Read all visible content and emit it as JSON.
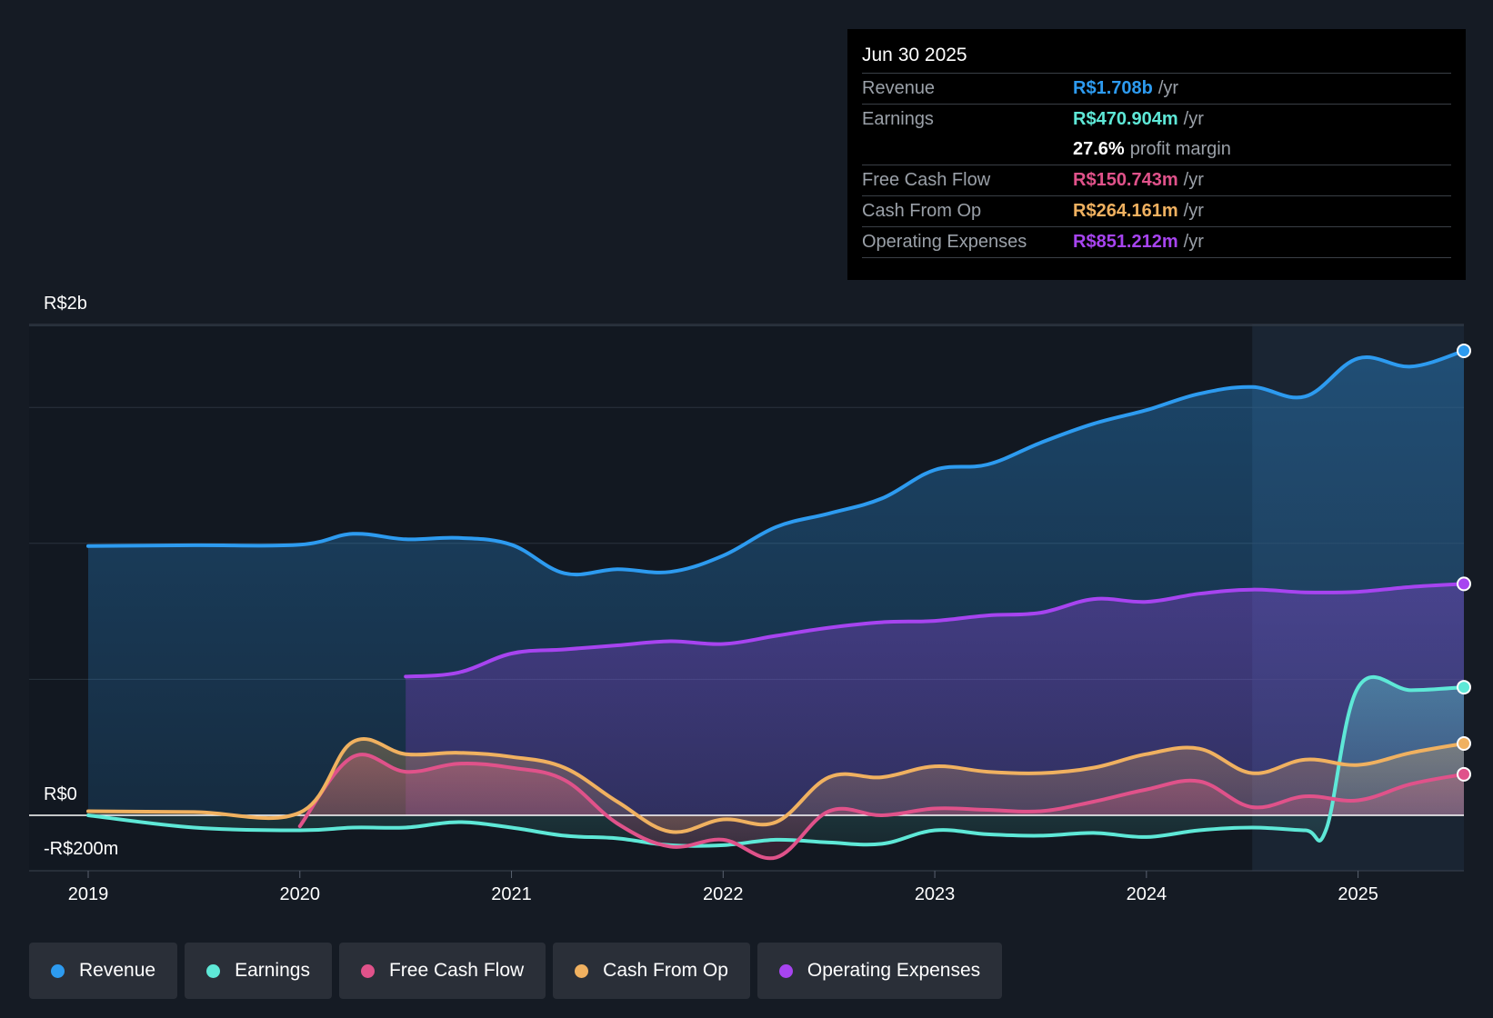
{
  "tooltip": {
    "date": "Jun 30 2025",
    "rows": [
      {
        "label": "Revenue",
        "value": "R$1.708b",
        "unit": "/yr",
        "color": "#2d9bf0"
      },
      {
        "label": "Earnings",
        "value": "R$470.904m",
        "unit": "/yr",
        "color": "#5ee8d7"
      },
      {
        "label": "",
        "value": "27.6%",
        "unit": "profit margin",
        "color": "#ffffff"
      },
      {
        "label": "Free Cash Flow",
        "value": "R$150.743m",
        "unit": "/yr",
        "color": "#e0528a"
      },
      {
        "label": "Cash From Op",
        "value": "R$264.161m",
        "unit": "/yr",
        "color": "#f0b160"
      },
      {
        "label": "Operating Expenses",
        "value": "R$851.212m",
        "unit": "/yr",
        "color": "#a744f0"
      }
    ]
  },
  "legend": [
    {
      "label": "Revenue",
      "color": "#2d9bf0"
    },
    {
      "label": "Earnings",
      "color": "#5ee8d7"
    },
    {
      "label": "Free Cash Flow",
      "color": "#e0528a"
    },
    {
      "label": "Cash From Op",
      "color": "#f0b160"
    },
    {
      "label": "Operating Expenses",
      "color": "#a744f0"
    }
  ],
  "chart_data": {
    "type": "line",
    "title": "",
    "y_labels": {
      "top": "R$2b",
      "zero": "R$0",
      "bottom": "-R$200m"
    },
    "ylim": [
      -200,
      1800
    ],
    "xlim": [
      2019.0,
      2025.5
    ],
    "x_ticks": [
      "2019",
      "2020",
      "2021",
      "2022",
      "2023",
      "2024",
      "2025"
    ],
    "x_tick_values": [
      2019,
      2020,
      2021,
      2022,
      2023,
      2024,
      2025
    ],
    "grid_values": [
      1800,
      1500,
      1000,
      500,
      0
    ],
    "highlight_start": 2024.5,
    "series": [
      {
        "name": "Revenue",
        "color": "#2d9bf0",
        "x": [
          2019.0,
          2019.5,
          2020.0,
          2020.25,
          2020.5,
          2020.75,
          2021.0,
          2021.25,
          2021.5,
          2021.75,
          2022.0,
          2022.25,
          2022.5,
          2022.75,
          2023.0,
          2023.25,
          2023.5,
          2023.75,
          2024.0,
          2024.25,
          2024.5,
          2024.75,
          2025.0,
          2025.25,
          2025.5
        ],
        "y": [
          990,
          993,
          995,
          1035,
          1015,
          1020,
          995,
          890,
          905,
          895,
          955,
          1060,
          1110,
          1165,
          1270,
          1290,
          1370,
          1440,
          1490,
          1550,
          1575,
          1540,
          1680,
          1650,
          1708
        ]
      },
      {
        "name": "Operating Expenses",
        "color": "#a744f0",
        "x": [
          2020.5,
          2020.75,
          2021.0,
          2021.25,
          2021.5,
          2021.75,
          2022.0,
          2022.25,
          2022.5,
          2022.75,
          2023.0,
          2023.25,
          2023.5,
          2023.75,
          2024.0,
          2024.25,
          2024.5,
          2024.75,
          2025.0,
          2025.25,
          2025.5
        ],
        "y": [
          510,
          525,
          595,
          610,
          625,
          640,
          630,
          660,
          690,
          710,
          715,
          735,
          745,
          795,
          785,
          815,
          830,
          820,
          822,
          840,
          851
        ]
      },
      {
        "name": "Earnings",
        "color": "#5ee8d7",
        "x": [
          2019.0,
          2019.5,
          2020.0,
          2020.25,
          2020.5,
          2020.75,
          2021.0,
          2021.25,
          2021.5,
          2021.75,
          2022.0,
          2022.25,
          2022.5,
          2022.75,
          2023.0,
          2023.25,
          2023.5,
          2023.75,
          2024.0,
          2024.25,
          2024.5,
          2024.75,
          2024.85,
          2025.0,
          2025.25,
          2025.5
        ],
        "y": [
          0,
          -45,
          -55,
          -45,
          -45,
          -25,
          -45,
          -75,
          -85,
          -110,
          -110,
          -90,
          -100,
          -105,
          -55,
          -70,
          -75,
          -65,
          -80,
          -55,
          -45,
          -55,
          -50,
          470,
          460,
          471
        ]
      },
      {
        "name": "Free Cash Flow",
        "color": "#e0528a",
        "x": [
          2020.0,
          2020.25,
          2020.5,
          2020.75,
          2021.0,
          2021.25,
          2021.5,
          2021.75,
          2022.0,
          2022.25,
          2022.5,
          2022.75,
          2023.0,
          2023.25,
          2023.5,
          2023.75,
          2024.0,
          2024.25,
          2024.5,
          2024.75,
          2025.0,
          2025.25,
          2025.5
        ],
        "y": [
          -40,
          215,
          160,
          190,
          175,
          130,
          -30,
          -115,
          -90,
          -155,
          15,
          0,
          25,
          20,
          15,
          50,
          95,
          125,
          30,
          70,
          55,
          115,
          151
        ]
      },
      {
        "name": "Cash From Op",
        "color": "#f0b160",
        "x": [
          2019.0,
          2019.5,
          2020.0,
          2020.25,
          2020.5,
          2020.75,
          2021.0,
          2021.25,
          2021.5,
          2021.75,
          2022.0,
          2022.25,
          2022.5,
          2022.75,
          2023.0,
          2023.25,
          2023.5,
          2023.75,
          2024.0,
          2024.25,
          2024.5,
          2024.75,
          2025.0,
          2025.25,
          2025.5
        ],
        "y": [
          15,
          12,
          10,
          270,
          225,
          230,
          215,
          175,
          50,
          -60,
          -15,
          -25,
          140,
          140,
          180,
          160,
          155,
          175,
          225,
          245,
          155,
          205,
          185,
          230,
          264
        ]
      }
    ]
  }
}
